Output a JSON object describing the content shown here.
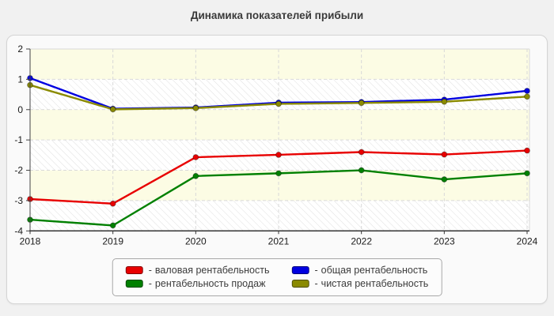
{
  "chart_data": {
    "type": "line",
    "title": "Динамика показателей прибыли",
    "xlabel": "",
    "ylabel": "",
    "x": [
      "2018",
      "2019",
      "2020",
      "2021",
      "2022",
      "2023",
      "2024"
    ],
    "ylim": [
      -4,
      2
    ],
    "yticks": [
      2,
      1,
      0,
      -1,
      -2,
      -3,
      -4
    ],
    "grid": true,
    "legend_position": "bottom",
    "legend_prefix": "- ",
    "series": [
      {
        "key": "gross",
        "name": "валовая рентабельность",
        "color": "#e80000",
        "values": [
          -2.95,
          -3.1,
          -1.57,
          -1.49,
          -1.4,
          -1.48,
          -1.35
        ]
      },
      {
        "key": "total",
        "name": "общая рентабельность",
        "color": "#0000e0",
        "values": [
          1.04,
          0.03,
          0.07,
          0.23,
          0.25,
          0.33,
          0.62
        ]
      },
      {
        "key": "sales",
        "name": "рентабельность продаж",
        "color": "#008000",
        "values": [
          -3.63,
          -3.82,
          -2.19,
          -2.1,
          -2.0,
          -2.3,
          -2.1
        ]
      },
      {
        "key": "net",
        "name": "чистая рентабельность",
        "color": "#8a8a00",
        "values": [
          0.81,
          0.01,
          0.05,
          0.19,
          0.22,
          0.26,
          0.43
        ]
      }
    ],
    "plot_style": {
      "band_color": "#fcfce4",
      "hatch_bg_color": "#ffffff",
      "hatch_line_color": "#e0e0e0",
      "grid_color": "#d9d9d9",
      "border_color": "#d9d9d9",
      "axis_color": "#444444"
    }
  }
}
